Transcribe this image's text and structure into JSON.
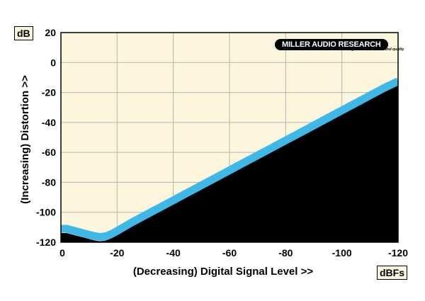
{
  "chart_data": {
    "type": "area",
    "xlabel": "(Decreasing) Digital Signal Level >>",
    "ylabel": "(Increasing) Distortion >>",
    "x_unit": "dBFs",
    "y_unit": "dB",
    "xlim": [
      0,
      -120
    ],
    "ylim": [
      -120,
      20
    ],
    "x_ticks": [
      0,
      -20,
      -40,
      -60,
      -80,
      -100,
      -120
    ],
    "y_ticks": [
      20,
      0,
      -20,
      -40,
      -60,
      -80,
      -100,
      -120
    ],
    "grid": true,
    "series": [
      {
        "x": [
          0,
          -2,
          -4,
          -6,
          -8,
          -10,
          -12,
          -14,
          -16,
          -18,
          -20,
          -25,
          -30,
          -35,
          -40,
          -45,
          -50,
          -55,
          -60,
          -65,
          -70,
          -75,
          -80,
          -85,
          -90,
          -95,
          -100,
          -105,
          -110,
          -115,
          -120
        ],
        "y": [
          -111,
          -111,
          -112,
          -113,
          -114,
          -115,
          -116,
          -116.5,
          -116,
          -114.5,
          -112.5,
          -107,
          -102,
          -97,
          -92,
          -87,
          -82,
          -77,
          -72,
          -67,
          -62,
          -57,
          -52,
          -47,
          -42,
          -37,
          -32,
          -27,
          -22,
          -17,
          -12.5
        ]
      }
    ],
    "colors": {
      "background": "#fbf6dc",
      "band": "#3fb8e8",
      "fill": "#000000",
      "grid": "#b5b5b5"
    }
  },
  "logo": {
    "main": "MILLER AUDIO RESEARCH",
    "tagline": "setting the measure of sound quality"
  }
}
